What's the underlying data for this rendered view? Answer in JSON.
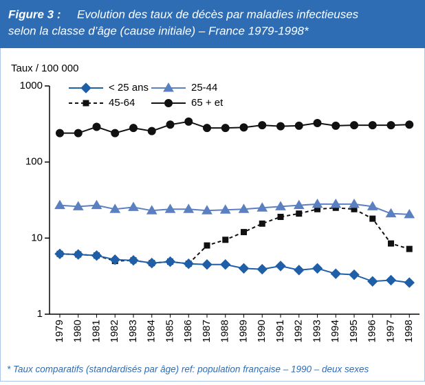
{
  "chart_data": {
    "type": "line",
    "figure_label": "Figure 3 :",
    "title_lines": [
      "Evolution des taux de décès par maladies infectieuses",
      "selon la classe d’âge (cause initiale) – France  1979-1998*"
    ],
    "y_label": "Taux / 100 000",
    "footnote": "* Taux comparatifs (standardisés par âge) ref: population française – 1990 – deux sexes",
    "log_scale": true,
    "ylim": [
      1,
      1000
    ],
    "yticks": [
      1,
      10,
      100,
      1000
    ],
    "categories": [
      "1979",
      "1980",
      "1981",
      "1982",
      "1983",
      "1984",
      "1985",
      "1986",
      "1987",
      "1988",
      "1989",
      "1990",
      "1991",
      "1992",
      "1993",
      "1994",
      "1995",
      "1996",
      "1997",
      "1998"
    ],
    "series": [
      {
        "name": "< 25 ans",
        "color": "#1f5fa8",
        "marker": "diamond",
        "dashed": false,
        "values": [
          6.2,
          6.1,
          5.9,
          5.2,
          5.1,
          4.7,
          4.9,
          4.6,
          4.5,
          4.5,
          4.0,
          3.9,
          4.3,
          3.8,
          4.0,
          3.4,
          3.3,
          2.7,
          2.8,
          2.6
        ]
      },
      {
        "name": "25-44",
        "color": "#5b80c2",
        "marker": "triangle",
        "dashed": false,
        "values": [
          27,
          26,
          27,
          24,
          25.5,
          23,
          24,
          24,
          23,
          23.5,
          24,
          25,
          26,
          27,
          28,
          28,
          28,
          26,
          21,
          20.5
        ]
      },
      {
        "name": "45-64",
        "color": "#111111",
        "marker": "square",
        "dashed": true,
        "values": [
          6.2,
          6.1,
          5.9,
          5.0,
          5.1,
          4.7,
          4.9,
          4.6,
          8,
          9.5,
          12,
          15.5,
          19,
          21,
          24,
          25,
          24,
          18,
          8.5,
          7.2
        ]
      },
      {
        "name": "65 + et",
        "color": "#111111",
        "marker": "circle",
        "dashed": false,
        "values": [
          240,
          240,
          290,
          240,
          280,
          255,
          310,
          340,
          280,
          280,
          285,
          305,
          295,
          300,
          325,
          300,
          305,
          305,
          305,
          310
        ]
      }
    ]
  }
}
